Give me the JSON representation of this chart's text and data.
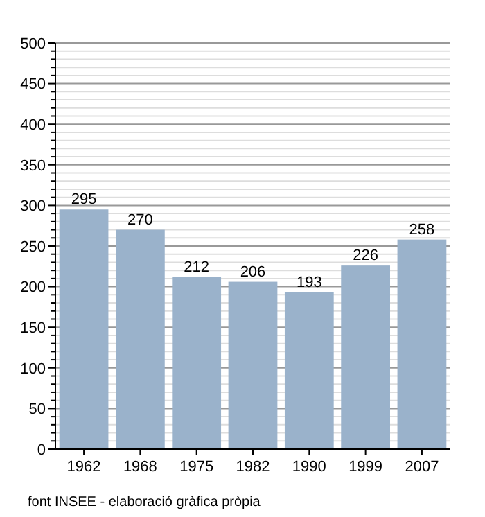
{
  "chart_data": {
    "type": "bar",
    "categories": [
      "1962",
      "1968",
      "1975",
      "1982",
      "1990",
      "1999",
      "2007"
    ],
    "values": [
      295,
      270,
      212,
      206,
      193,
      226,
      258
    ],
    "color": "#9ab2cb",
    "data_labels": true,
    "ylim": [
      0,
      500
    ],
    "yticks": [
      0,
      {
        "value": 10,
        "label": null
      },
      {
        "value": 20,
        "label": null
      },
      {
        "value": 30,
        "label": null
      },
      {
        "value": 40,
        "label": null
      },
      50,
      {
        "value": 60,
        "label": null
      },
      {
        "value": 70,
        "label": null
      },
      {
        "value": 80,
        "label": null
      },
      {
        "value": 90,
        "label": null
      },
      100,
      {
        "value": 110,
        "label": null
      },
      {
        "value": 120,
        "label": null
      },
      {
        "value": 130,
        "label": null
      },
      {
        "value": 140,
        "label": null
      },
      150,
      {
        "value": 160,
        "label": null
      },
      {
        "value": 170,
        "label": null
      },
      {
        "value": 180,
        "label": null
      },
      {
        "value": 190,
        "label": null
      },
      200,
      {
        "value": 210,
        "label": null
      },
      {
        "value": 220,
        "label": null
      },
      {
        "value": 230,
        "label": null
      },
      {
        "value": 240,
        "label": null
      },
      250,
      {
        "value": 260,
        "label": null
      },
      {
        "value": 270,
        "label": null
      },
      {
        "value": 280,
        "label": null
      },
      {
        "value": 290,
        "label": null
      },
      300,
      {
        "value": 310,
        "label": null
      },
      {
        "value": 320,
        "label": null
      },
      {
        "value": 330,
        "label": null
      },
      {
        "value": 340,
        "label": null
      },
      350,
      {
        "value": 360,
        "label": null
      },
      {
        "value": 370,
        "label": null
      },
      {
        "value": 380,
        "label": null
      },
      {
        "value": 390,
        "label": null
      },
      400,
      {
        "value": 410,
        "label": null
      },
      {
        "value": 420,
        "label": null
      },
      {
        "value": 430,
        "label": null
      },
      {
        "value": 440,
        "label": null
      },
      450,
      {
        "value": 460,
        "label": null
      },
      {
        "value": 470,
        "label": null
      },
      {
        "value": 480,
        "label": null
      },
      {
        "value": 490,
        "label": null
      },
      500
    ],
    "grid": true,
    "annotations": [
      "font INSEE - elaboració gràfica pròpia"
    ]
  }
}
